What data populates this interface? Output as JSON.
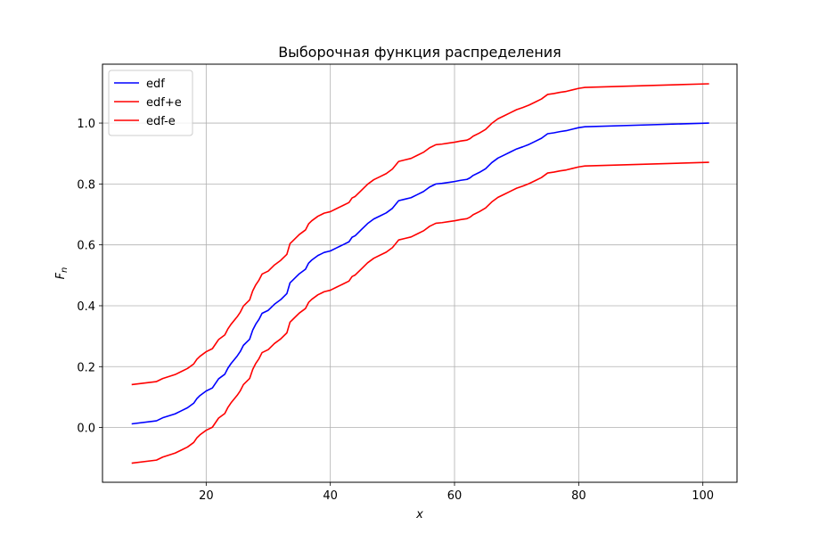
{
  "chart_data": {
    "type": "line",
    "title": "Выборочная функция распределения",
    "xlabel": "x",
    "ylabel": "F",
    "ylabel_subscript": "n",
    "xlim": [
      3.3,
      105.5
    ],
    "ylim": [
      -0.1798,
      1.1934
    ],
    "xticks": [
      20,
      40,
      60,
      80,
      100
    ],
    "yticks": [
      0.0,
      0.2,
      0.4,
      0.6,
      0.8,
      1.0
    ],
    "xtick_labels": [
      "20",
      "40",
      "60",
      "80",
      "100"
    ],
    "ytick_labels": [
      "0.0",
      "0.2",
      "0.4",
      "0.6",
      "0.8",
      "1.0"
    ],
    "grid": true,
    "legend_placement": "top-left",
    "x": [
      8,
      12,
      13,
      15,
      16,
      17,
      18,
      18.5,
      19,
      20,
      21,
      22,
      23,
      23.5,
      24,
      25,
      25.5,
      26,
      27,
      27.5,
      28,
      28.5,
      29,
      30,
      31,
      32,
      33,
      33.5,
      34,
      35,
      36,
      36.5,
      37,
      38,
      38.5,
      39,
      40,
      41,
      42,
      43,
      43.5,
      44,
      45,
      46,
      47,
      48,
      49,
      50,
      51,
      52,
      53,
      54,
      55,
      56,
      57,
      58,
      59,
      60,
      61,
      62,
      62.5,
      63,
      64,
      65,
      66,
      67,
      68,
      69,
      70,
      71,
      72,
      73,
      74,
      75,
      76,
      77,
      78,
      79,
      80,
      81,
      101
    ],
    "series": [
      {
        "name": "edf",
        "color": "#0000ff",
        "values": [
          0.012,
          0.022,
          0.032,
          0.045,
          0.055,
          0.065,
          0.08,
          0.095,
          0.105,
          0.12,
          0.13,
          0.16,
          0.175,
          0.195,
          0.21,
          0.235,
          0.25,
          0.27,
          0.29,
          0.32,
          0.34,
          0.355,
          0.375,
          0.385,
          0.405,
          0.42,
          0.44,
          0.475,
          0.485,
          0.505,
          0.52,
          0.54,
          0.55,
          0.565,
          0.57,
          0.575,
          0.58,
          0.59,
          0.6,
          0.61,
          0.625,
          0.63,
          0.65,
          0.67,
          0.685,
          0.695,
          0.705,
          0.72,
          0.745,
          0.75,
          0.755,
          0.765,
          0.775,
          0.79,
          0.8,
          0.802,
          0.805,
          0.808,
          0.812,
          0.815,
          0.82,
          0.828,
          0.838,
          0.85,
          0.87,
          0.885,
          0.895,
          0.905,
          0.915,
          0.922,
          0.93,
          0.94,
          0.95,
          0.965,
          0.968,
          0.972,
          0.975,
          0.98,
          0.985,
          0.988,
          1.0
        ]
      },
      {
        "name": "edf+e",
        "color": "#ff0000",
        "values": [
          0.141,
          0.151,
          0.161,
          0.174,
          0.184,
          0.194,
          0.209,
          0.224,
          0.234,
          0.249,
          0.259,
          0.289,
          0.304,
          0.324,
          0.339,
          0.364,
          0.379,
          0.399,
          0.419,
          0.449,
          0.469,
          0.484,
          0.504,
          0.514,
          0.534,
          0.549,
          0.569,
          0.604,
          0.614,
          0.634,
          0.649,
          0.669,
          0.679,
          0.694,
          0.699,
          0.704,
          0.709,
          0.719,
          0.729,
          0.739,
          0.754,
          0.759,
          0.779,
          0.799,
          0.814,
          0.824,
          0.834,
          0.849,
          0.874,
          0.879,
          0.884,
          0.894,
          0.904,
          0.919,
          0.929,
          0.931,
          0.934,
          0.937,
          0.941,
          0.944,
          0.949,
          0.957,
          0.967,
          0.979,
          0.999,
          1.014,
          1.024,
          1.034,
          1.044,
          1.051,
          1.059,
          1.069,
          1.079,
          1.094,
          1.097,
          1.101,
          1.104,
          1.109,
          1.114,
          1.117,
          1.129
        ]
      },
      {
        "name": "edf-e",
        "color": "#ff0000",
        "values": [
          -0.117,
          -0.107,
          -0.097,
          -0.084,
          -0.074,
          -0.064,
          -0.049,
          -0.034,
          -0.024,
          -0.009,
          0.001,
          0.031,
          0.046,
          0.066,
          0.081,
          0.106,
          0.121,
          0.141,
          0.161,
          0.191,
          0.211,
          0.226,
          0.246,
          0.256,
          0.276,
          0.291,
          0.311,
          0.346,
          0.356,
          0.376,
          0.391,
          0.411,
          0.421,
          0.436,
          0.441,
          0.446,
          0.451,
          0.461,
          0.471,
          0.481,
          0.496,
          0.501,
          0.521,
          0.541,
          0.556,
          0.566,
          0.576,
          0.591,
          0.616,
          0.621,
          0.626,
          0.636,
          0.646,
          0.661,
          0.671,
          0.673,
          0.676,
          0.679,
          0.683,
          0.686,
          0.691,
          0.699,
          0.709,
          0.721,
          0.741,
          0.756,
          0.766,
          0.776,
          0.786,
          0.793,
          0.801,
          0.811,
          0.821,
          0.836,
          0.839,
          0.843,
          0.846,
          0.851,
          0.856,
          0.859,
          0.871
        ]
      }
    ]
  }
}
